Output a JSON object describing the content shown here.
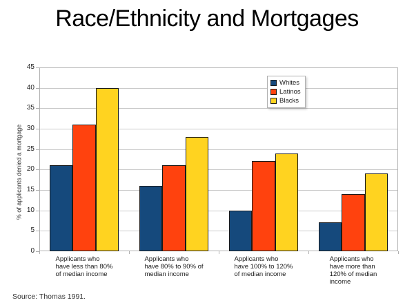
{
  "slide": {
    "title": "Race/Ethnicity and Mortgages",
    "source": "Source: Thomas 1991."
  },
  "chart_data": {
    "type": "bar",
    "title": "Race/Ethnicity and Mortgages",
    "xlabel": "",
    "ylabel": "% of applicants denied a mortgage",
    "ylim": [
      0,
      45
    ],
    "ytick_step": 5,
    "grid": true,
    "legend_position": "inside-top-right",
    "categories": [
      "Applicants who\nhave less than 80%\nof median income",
      "Applicants who\nhave 80% to 90% of\nmedian income",
      "Applicants who\nhave 100% to 120%\nof median income",
      "Applicants who\nhave more than\n120% of median\nincome"
    ],
    "series": [
      {
        "name": "Whites",
        "color": "#15497C",
        "values": [
          21,
          16,
          10,
          7
        ]
      },
      {
        "name": "Latinos",
        "color": "#FF420E",
        "values": [
          31,
          21,
          22,
          14
        ]
      },
      {
        "name": "Blacks",
        "color": "#FFD320",
        "values": [
          40,
          28,
          24,
          19
        ]
      }
    ],
    "bar_border_color": "#1A1A1A",
    "grid_color": "#C9C9C9",
    "axis_color": "#B0B0B0"
  }
}
